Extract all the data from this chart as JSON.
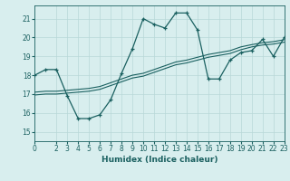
{
  "xlabel": "Humidex (Indice chaleur)",
  "xlim": [
    0,
    23
  ],
  "ylim": [
    14.5,
    21.7
  ],
  "yticks": [
    15,
    16,
    17,
    18,
    19,
    20,
    21
  ],
  "xticks": [
    0,
    2,
    3,
    4,
    5,
    6,
    7,
    8,
    9,
    10,
    11,
    12,
    13,
    14,
    15,
    16,
    17,
    18,
    19,
    20,
    21,
    22,
    23
  ],
  "bg_color": "#d8eeee",
  "grid_color": "#b8d8d8",
  "line_color": "#1a6060",
  "curve1_x": [
    0,
    1,
    2,
    3,
    4,
    5,
    6,
    7,
    8,
    9,
    10,
    11,
    12,
    13,
    14,
    15,
    16,
    17,
    18,
    19,
    20,
    21,
    22,
    23
  ],
  "curve1_y": [
    18.0,
    18.3,
    18.3,
    16.9,
    15.7,
    15.7,
    15.9,
    16.7,
    18.1,
    19.4,
    21.0,
    20.7,
    20.5,
    21.3,
    21.3,
    20.4,
    17.8,
    17.8,
    18.8,
    19.2,
    19.3,
    19.9,
    19.0,
    20.0
  ],
  "curve2_x": [
    0,
    1,
    2,
    3,
    4,
    5,
    6,
    7,
    8,
    9,
    10,
    11,
    12,
    13,
    14,
    15,
    16,
    17,
    18,
    19,
    20,
    21,
    22,
    23
  ],
  "curve2_y": [
    16.95,
    17.0,
    17.0,
    17.05,
    17.1,
    17.15,
    17.25,
    17.45,
    17.65,
    17.85,
    17.95,
    18.15,
    18.35,
    18.55,
    18.65,
    18.8,
    18.95,
    19.05,
    19.15,
    19.35,
    19.5,
    19.6,
    19.65,
    19.75
  ],
  "curve3_x": [
    0,
    1,
    2,
    3,
    4,
    5,
    6,
    7,
    8,
    9,
    10,
    11,
    12,
    13,
    14,
    15,
    16,
    17,
    18,
    19,
    20,
    21,
    22,
    23
  ],
  "curve3_y": [
    17.1,
    17.15,
    17.15,
    17.2,
    17.25,
    17.3,
    17.4,
    17.6,
    17.8,
    18.0,
    18.1,
    18.3,
    18.5,
    18.7,
    18.8,
    18.95,
    19.1,
    19.2,
    19.3,
    19.5,
    19.62,
    19.72,
    19.78,
    19.88
  ]
}
